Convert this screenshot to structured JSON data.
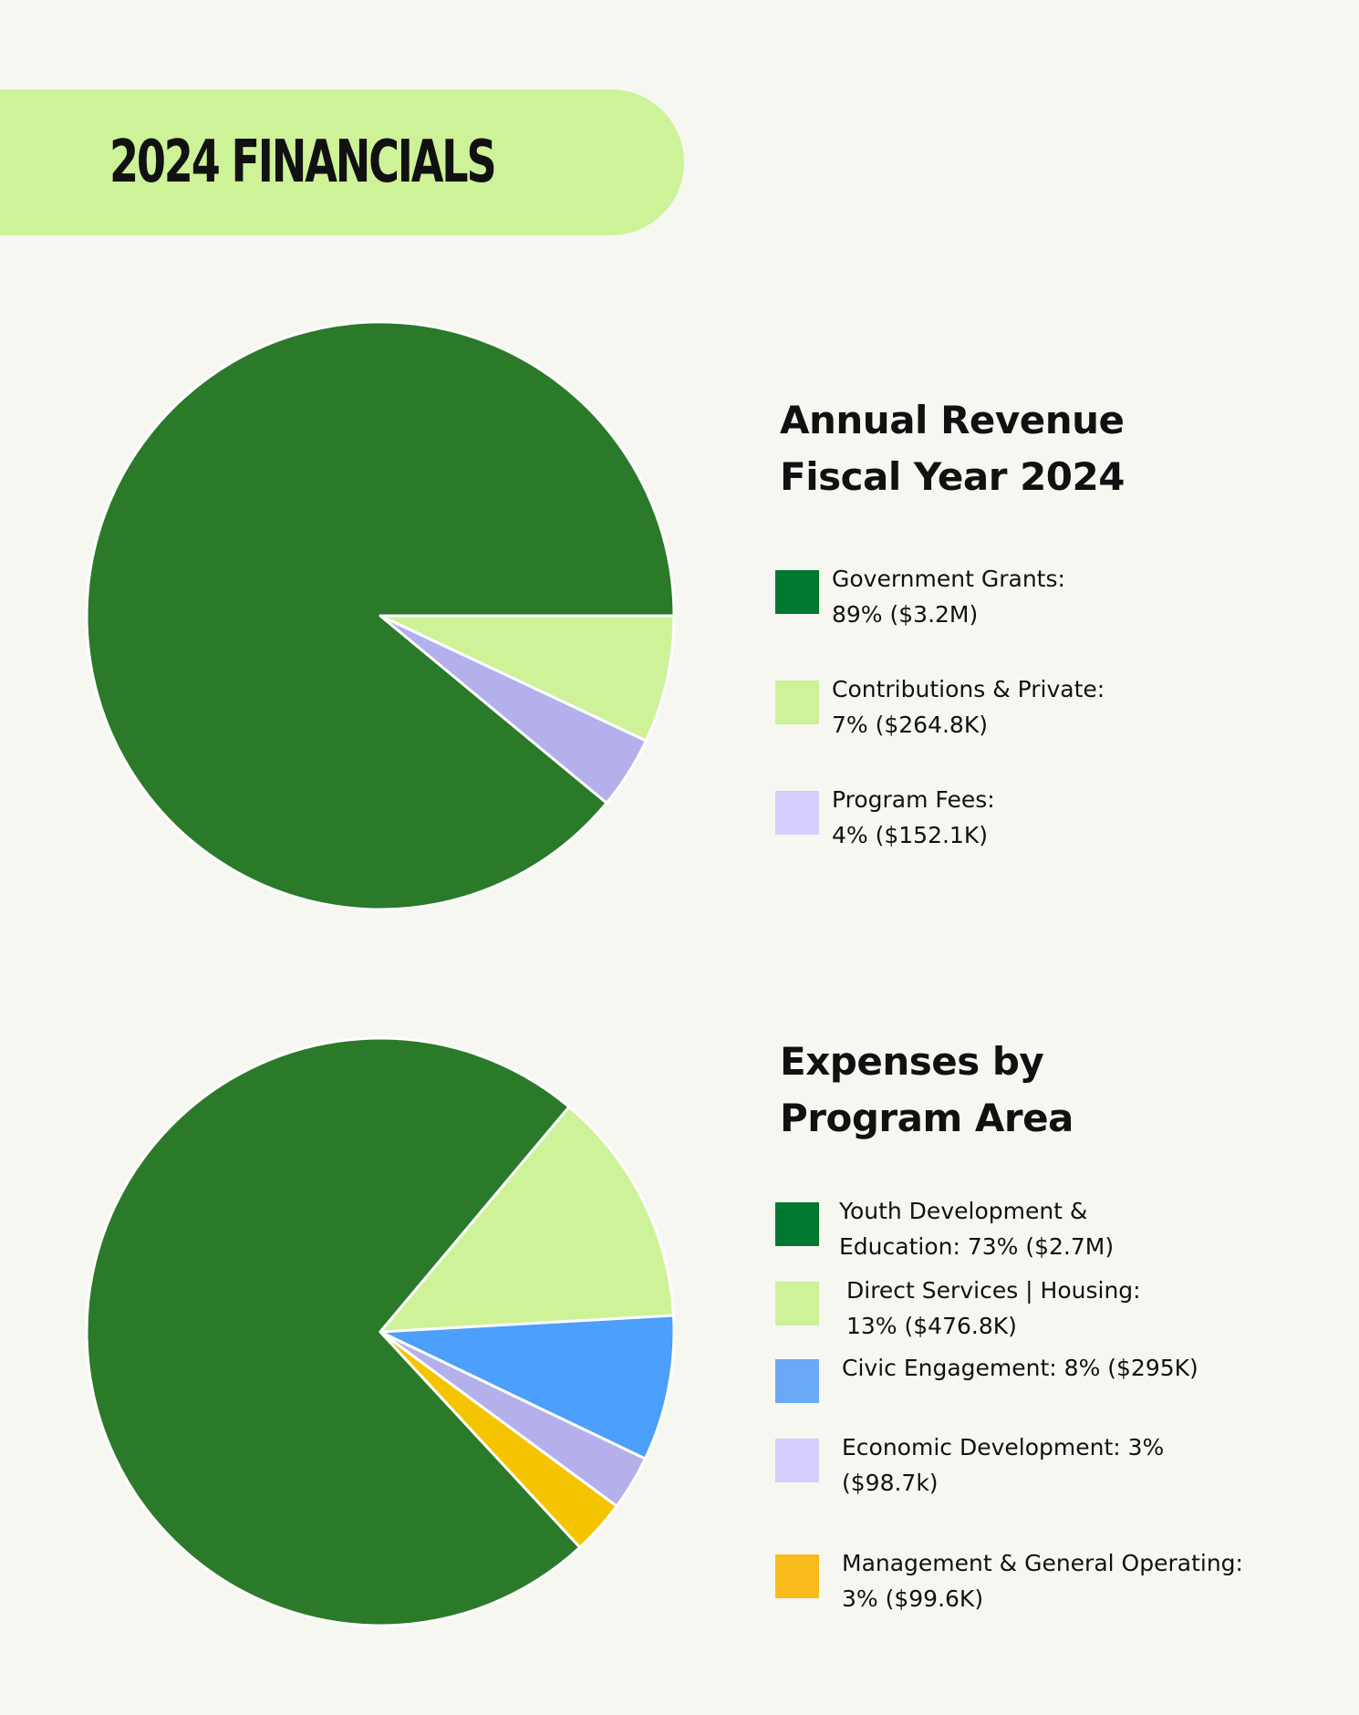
{
  "header": {
    "title": "2024 FINANCIALS"
  },
  "chart_data": [
    {
      "type": "pie",
      "title_lines": [
        "Annual Revenue",
        "Fiscal Year 2024"
      ],
      "categories": [
        "Government Grants",
        "Contributions & Private",
        "Program Fees"
      ],
      "values": [
        89,
        7,
        4
      ],
      "colors": [
        "#2a7a2a",
        "#cdf298",
        "#b3b0ec"
      ],
      "swatch_colors": [
        "#00782f",
        "#cdf298",
        "#d4cffd"
      ],
      "legend_lines": [
        [
          "Government Grants:",
          "89% ($3.2M)"
        ],
        [
          "Contributions & Private:",
          "7% ($264.8K)"
        ],
        [
          "Program Fees:",
          "4% ($152.1K)"
        ]
      ]
    },
    {
      "type": "pie",
      "title_lines": [
        "Expenses by",
        "Program Area"
      ],
      "categories": [
        "Youth Development & Education",
        "Direct Services | Housing",
        "Civic Engagement",
        "Economic Development",
        "Management & General Operating"
      ],
      "values": [
        73,
        13,
        8,
        3,
        3
      ],
      "colors": [
        "#2a7a2a",
        "#cdf298",
        "#4c9ffa",
        "#b3b0ec",
        "#f5c400"
      ],
      "swatch_colors": [
        "#00782f",
        "#cdf298",
        "#6aa8f8",
        "#d4cffd",
        "#f9bc1c"
      ],
      "legend_lines": [
        [
          "Youth Development &",
          "Education: 73% ($2.7M)"
        ],
        [
          "Direct Services | Housing:",
          "13% ($476.8K)"
        ],
        [
          "Civic Engagement: 8% ($295K)"
        ],
        [
          "Economic Development: 3%",
          "($98.7k)"
        ],
        [
          "Management & General Operating:",
          "3% ($99.6K)"
        ]
      ]
    }
  ]
}
